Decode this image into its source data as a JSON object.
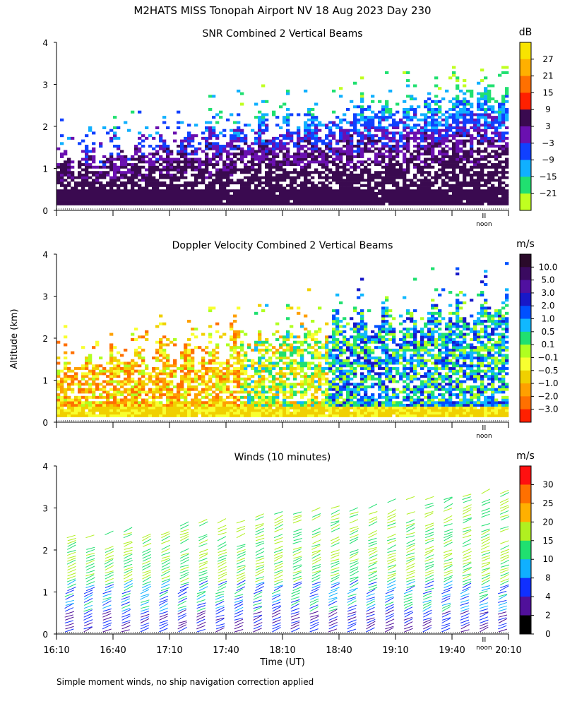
{
  "title": "M2HATS MISS Tonopah Airport NV  18 Aug 2023 Day 230",
  "ylabel": "Altitude (km)",
  "xlabel": "Time (UT)",
  "noon_label": "noon",
  "footnote": "Simple moment winds, no ship navigation correction applied",
  "chart_data": [
    {
      "type": "heatmap",
      "title": "SNR Combined 2 Vertical Beams",
      "colorbar_unit": "dB",
      "colorbar_ticks": [
        "27",
        "21",
        "15",
        "9",
        "3",
        "−3",
        "−9",
        "−15",
        "−21"
      ],
      "colorbar_colors": [
        "#f8e400",
        "#ffb000",
        "#ff7000",
        "#ff2000",
        "#3a0a50",
        "#6a10b0",
        "#1040ff",
        "#10b0ff",
        "#20e070",
        "#c0ff20"
      ],
      "yticks": [
        "0",
        "1",
        "2",
        "3",
        "4"
      ],
      "ylim": [
        0,
        4
      ],
      "xlim_hours": [
        16.1667,
        20.1667
      ],
      "noon_hour": 19.95,
      "grid": false
    },
    {
      "type": "heatmap",
      "title": "Doppler Velocity Combined 2 Vertical Beams",
      "colorbar_unit": "m/s",
      "colorbar_ticks": [
        "10.0",
        "5.0",
        "3.0",
        "2.0",
        "1.0",
        "0.5",
        "0.1",
        "−0.1",
        "−0.5",
        "−1.0",
        "−2.0",
        "−3.0"
      ],
      "colorbar_colors": [
        "#2a0a2a",
        "#3a0a60",
        "#5010a0",
        "#1818c8",
        "#0050ff",
        "#10b8ff",
        "#20e070",
        "#b0ff20",
        "#f8ff30",
        "#f0d000",
        "#ffa000",
        "#ff7000",
        "#ff2000"
      ],
      "yticks": [
        "0",
        "1",
        "2",
        "3",
        "4"
      ],
      "ylim": [
        0,
        4
      ],
      "xlim_hours": [
        16.1667,
        20.1667
      ],
      "noon_hour": 19.95,
      "grid": false
    },
    {
      "type": "scatter",
      "title": "Winds (10 minutes)",
      "colorbar_unit": "m/s",
      "colorbar_ticks": [
        "30",
        "25",
        "20",
        "15",
        "10",
        "8",
        "4",
        "2",
        "0"
      ],
      "colorbar_colors": [
        "#ff1010",
        "#ff7000",
        "#ffb000",
        "#b0f020",
        "#20e070",
        "#10b0ff",
        "#1030ff",
        "#50109a",
        "#000000"
      ],
      "xticks": [
        "16:10",
        "16:40",
        "17:10",
        "17:40",
        "18:10",
        "18:40",
        "19:10",
        "19:40",
        "20:10"
      ],
      "yticks": [
        "0",
        "1",
        "2",
        "3",
        "4"
      ],
      "ylim": [
        0,
        4
      ],
      "xlim_hours": [
        16.1667,
        20.1667
      ],
      "noon_hour": 19.95,
      "profile_times": [
        "16:10",
        "16:20",
        "16:30",
        "16:40",
        "16:50",
        "17:00",
        "17:10",
        "17:20",
        "17:30",
        "17:40",
        "17:50",
        "18:00",
        "18:10",
        "18:20",
        "18:30",
        "18:40",
        "18:50",
        "19:00",
        "19:10",
        "19:20",
        "19:30",
        "19:40",
        "19:50",
        "20:00"
      ],
      "grid": false
    }
  ]
}
